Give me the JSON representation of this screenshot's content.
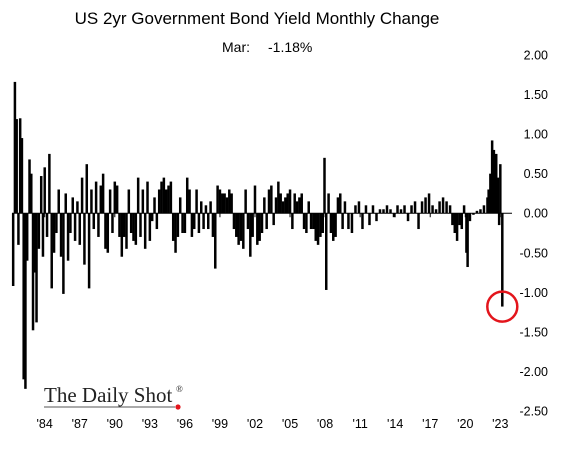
{
  "chart_data": {
    "type": "bar",
    "title": "US 2yr Government Bond Yield Monthly Change",
    "annotation": {
      "label": "Mar:",
      "value": "-1.18%"
    },
    "ylim": [
      -2.5,
      2.0
    ],
    "grid": false,
    "colors": {
      "bar": "#000000",
      "highlight": "#e3151c",
      "axis": "#000000",
      "logo_dot": "#e3151c"
    },
    "y_ticks": [
      "2.00",
      "1.50",
      "1.00",
      "0.50",
      "0.00",
      "-0.50",
      "-1.00",
      "-1.50",
      "-2.00",
      "-2.50"
    ],
    "x_ticks": [
      "'84",
      "'87",
      "'90",
      "'93",
      "'96",
      "'99",
      "'02",
      "'05",
      "'08",
      "'11",
      "'14",
      "'17",
      "'20",
      "'23"
    ],
    "x_tick_values": [
      1984,
      1987,
      1990,
      1993,
      1996,
      1999,
      2002,
      2005,
      2008,
      2011,
      2014,
      2017,
      2020,
      2023
    ],
    "xlim": [
      1981.2,
      2024.0
    ],
    "highlight": {
      "x": 2023.17,
      "value": -1.18
    },
    "series": [
      {
        "points": [
          [
            1981.3,
            -0.92
          ],
          [
            1981.45,
            1.66
          ],
          [
            1981.6,
            1.19
          ],
          [
            1981.75,
            -0.4
          ],
          [
            1981.9,
            1.2
          ],
          [
            1982.05,
            0.95
          ],
          [
            1982.2,
            -2.1
          ],
          [
            1982.35,
            -2.22
          ],
          [
            1982.5,
            -0.6
          ],
          [
            1982.7,
            0.68
          ],
          [
            1982.85,
            0.5
          ],
          [
            1983.0,
            -1.48
          ],
          [
            1983.15,
            -0.75
          ],
          [
            1983.3,
            -1.38
          ],
          [
            1983.5,
            -0.45
          ],
          [
            1983.7,
            0.47
          ],
          [
            1983.85,
            -0.55
          ],
          [
            1984.0,
            0.58
          ],
          [
            1984.2,
            -0.3
          ],
          [
            1984.4,
            0.75
          ],
          [
            1984.6,
            -0.95
          ],
          [
            1984.8,
            -0.5
          ],
          [
            1985.0,
            -0.25
          ],
          [
            1985.2,
            0.3
          ],
          [
            1985.4,
            -0.55
          ],
          [
            1985.6,
            -1.02
          ],
          [
            1985.8,
            0.25
          ],
          [
            1986.0,
            -0.6
          ],
          [
            1986.2,
            -0.25
          ],
          [
            1986.4,
            0.2
          ],
          [
            1986.6,
            -0.35
          ],
          [
            1986.8,
            0.15
          ],
          [
            1987.0,
            -0.4
          ],
          [
            1987.2,
            0.45
          ],
          [
            1987.4,
            -0.65
          ],
          [
            1987.6,
            0.62
          ],
          [
            1987.8,
            -0.95
          ],
          [
            1988.0,
            0.3
          ],
          [
            1988.2,
            -0.2
          ],
          [
            1988.4,
            0.4
          ],
          [
            1988.6,
            -0.3
          ],
          [
            1988.8,
            0.35
          ],
          [
            1989.0,
            0.5
          ],
          [
            1989.2,
            -0.45
          ],
          [
            1989.4,
            -0.5
          ],
          [
            1989.6,
            0.3
          ],
          [
            1989.8,
            -0.25
          ],
          [
            1990.0,
            0.4
          ],
          [
            1990.2,
            0.35
          ],
          [
            1990.4,
            -0.3
          ],
          [
            1990.6,
            -0.55
          ],
          [
            1990.8,
            -0.3
          ],
          [
            1991.0,
            -0.45
          ],
          [
            1991.2,
            0.3
          ],
          [
            1991.4,
            -0.25
          ],
          [
            1991.6,
            -0.35
          ],
          [
            1991.8,
            -0.4
          ],
          [
            1992.0,
            0.45
          ],
          [
            1992.2,
            -0.3
          ],
          [
            1992.4,
            0.3
          ],
          [
            1992.6,
            -0.45
          ],
          [
            1992.8,
            0.4
          ],
          [
            1993.0,
            -0.35
          ],
          [
            1993.2,
            -0.1
          ],
          [
            1993.4,
            0.2
          ],
          [
            1993.6,
            -0.2
          ],
          [
            1993.8,
            0.3
          ],
          [
            1994.0,
            0.4
          ],
          [
            1994.2,
            0.45
          ],
          [
            1994.4,
            0.3
          ],
          [
            1994.6,
            0.35
          ],
          [
            1994.8,
            0.4
          ],
          [
            1995.0,
            -0.35
          ],
          [
            1995.2,
            -0.5
          ],
          [
            1995.4,
            -0.3
          ],
          [
            1995.6,
            0.2
          ],
          [
            1995.8,
            -0.25
          ],
          [
            1996.0,
            -0.25
          ],
          [
            1996.2,
            0.45
          ],
          [
            1996.4,
            0.3
          ],
          [
            1996.6,
            -0.3
          ],
          [
            1996.8,
            -0.2
          ],
          [
            1997.0,
            0.3
          ],
          [
            1997.2,
            -0.25
          ],
          [
            1997.4,
            0.15
          ],
          [
            1997.6,
            -0.2
          ],
          [
            1997.8,
            0.1
          ],
          [
            1998.0,
            -0.2
          ],
          [
            1998.2,
            0.15
          ],
          [
            1998.4,
            -0.3
          ],
          [
            1998.6,
            -0.7
          ],
          [
            1998.8,
            0.35
          ],
          [
            1999.0,
            0.3
          ],
          [
            1999.2,
            0.25
          ],
          [
            1999.4,
            0.25
          ],
          [
            1999.6,
            0.2
          ],
          [
            1999.8,
            0.3
          ],
          [
            2000.0,
            0.25
          ],
          [
            2000.2,
            -0.2
          ],
          [
            2000.4,
            -0.3
          ],
          [
            2000.6,
            -0.4
          ],
          [
            2000.8,
            -0.35
          ],
          [
            2001.0,
            -0.45
          ],
          [
            2001.2,
            0.3
          ],
          [
            2001.4,
            -0.2
          ],
          [
            2001.6,
            -0.55
          ],
          [
            2001.8,
            -0.3
          ],
          [
            2002.0,
            0.35
          ],
          [
            2002.2,
            -0.4
          ],
          [
            2002.4,
            -0.35
          ],
          [
            2002.6,
            -0.25
          ],
          [
            2002.8,
            0.2
          ],
          [
            2003.0,
            -0.2
          ],
          [
            2003.2,
            0.3
          ],
          [
            2003.4,
            0.35
          ],
          [
            2003.6,
            -0.15
          ],
          [
            2003.8,
            0.2
          ],
          [
            2004.0,
            0.4
          ],
          [
            2004.2,
            0.25
          ],
          [
            2004.4,
            0.15
          ],
          [
            2004.6,
            0.2
          ],
          [
            2004.8,
            0.25
          ],
          [
            2005.0,
            0.3
          ],
          [
            2005.2,
            -0.2
          ],
          [
            2005.4,
            0.25
          ],
          [
            2005.6,
            0.15
          ],
          [
            2005.8,
            0.2
          ],
          [
            2006.0,
            0.25
          ],
          [
            2006.2,
            -0.2
          ],
          [
            2006.4,
            -0.25
          ],
          [
            2006.6,
            0.15
          ],
          [
            2006.8,
            -0.2
          ],
          [
            2007.0,
            -0.2
          ],
          [
            2007.2,
            -0.35
          ],
          [
            2007.4,
            -0.4
          ],
          [
            2007.6,
            -0.3
          ],
          [
            2007.8,
            -0.25
          ],
          [
            2007.95,
            0.7
          ],
          [
            2008.1,
            -0.97
          ],
          [
            2008.3,
            0.25
          ],
          [
            2008.5,
            -0.25
          ],
          [
            2008.7,
            -0.35
          ],
          [
            2008.9,
            -0.3
          ],
          [
            2009.1,
            0.2
          ],
          [
            2009.3,
            0.25
          ],
          [
            2009.5,
            -0.2
          ],
          [
            2009.7,
            0.15
          ],
          [
            2010.0,
            -0.2
          ],
          [
            2010.3,
            -0.25
          ],
          [
            2010.6,
            0.1
          ],
          [
            2010.9,
            0.15
          ],
          [
            2011.2,
            -0.2
          ],
          [
            2011.5,
            0.1
          ],
          [
            2011.8,
            -0.15
          ],
          [
            2012.1,
            0.1
          ],
          [
            2012.4,
            -0.1
          ],
          [
            2012.7,
            0.05
          ],
          [
            2013.0,
            0.05
          ],
          [
            2013.3,
            0.1
          ],
          [
            2013.6,
            0.05
          ],
          [
            2013.9,
            -0.05
          ],
          [
            2014.2,
            0.1
          ],
          [
            2014.5,
            0.05
          ],
          [
            2014.8,
            0.1
          ],
          [
            2015.1,
            -0.1
          ],
          [
            2015.4,
            0.1
          ],
          [
            2015.7,
            0.15
          ],
          [
            2016.0,
            -0.2
          ],
          [
            2016.3,
            0.15
          ],
          [
            2016.6,
            0.2
          ],
          [
            2016.9,
            0.25
          ],
          [
            2017.2,
            0.1
          ],
          [
            2017.5,
            0.05
          ],
          [
            2017.8,
            0.15
          ],
          [
            2018.1,
            0.2
          ],
          [
            2018.4,
            0.15
          ],
          [
            2018.7,
            0.1
          ],
          [
            2018.9,
            -0.15
          ],
          [
            2019.1,
            -0.25
          ],
          [
            2019.3,
            -0.35
          ],
          [
            2019.5,
            -0.15
          ],
          [
            2019.7,
            -0.2
          ],
          [
            2019.9,
            0.1
          ],
          [
            2020.1,
            -0.5
          ],
          [
            2020.2,
            -0.68
          ],
          [
            2020.4,
            -0.1
          ],
          [
            2020.7,
            -0.02
          ],
          [
            2021.0,
            0.03
          ],
          [
            2021.3,
            0.05
          ],
          [
            2021.6,
            0.1
          ],
          [
            2021.9,
            0.2
          ],
          [
            2022.0,
            0.3
          ],
          [
            2022.15,
            0.5
          ],
          [
            2022.3,
            0.92
          ],
          [
            2022.45,
            0.8
          ],
          [
            2022.55,
            0.2
          ],
          [
            2022.65,
            0.75
          ],
          [
            2022.8,
            0.45
          ],
          [
            2022.9,
            -0.15
          ],
          [
            2023.0,
            0.62
          ],
          [
            2023.17,
            -1.18
          ]
        ]
      }
    ]
  },
  "logo": {
    "text": "The Daily Shot",
    "mark": "®"
  }
}
